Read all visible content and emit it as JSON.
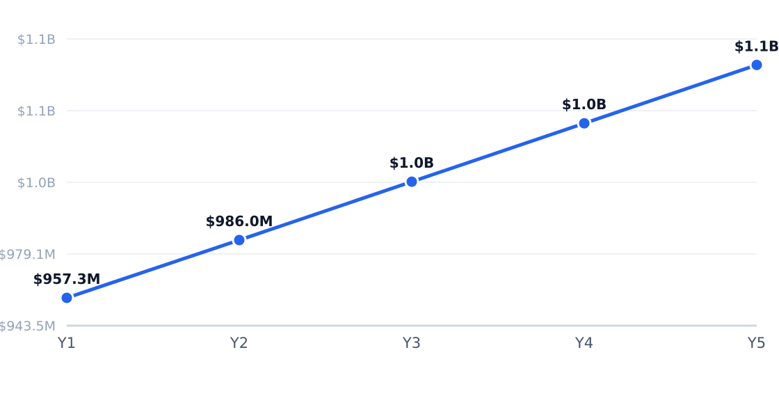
{
  "chart_data": {
    "type": "line",
    "title": "",
    "xlabel": "",
    "ylabel": "",
    "categories": [
      "Y1",
      "Y2",
      "Y3",
      "Y4",
      "Y5"
    ],
    "series": [
      {
        "values": [
          957.3,
          986.0,
          1015.0,
          1044.0,
          1073.0
        ],
        "data_labels": [
          "$957.3M",
          "$986.0M",
          "$1.0B",
          "$1.0B",
          "$1.1B"
        ],
        "color": "#2563eb"
      }
    ],
    "y_ticks": [
      {
        "value": 943.5,
        "label": "$943.5M"
      },
      {
        "value": 979.1,
        "label": "$979.1M"
      },
      {
        "value": 1014.7,
        "label": "$1.0B"
      },
      {
        "value": 1050.3,
        "label": "$1.1B"
      },
      {
        "value": 1085.9,
        "label": "$1.1B"
      }
    ],
    "ylim": [
      943.5,
      1085.9
    ],
    "grid": true,
    "legend": "none"
  }
}
